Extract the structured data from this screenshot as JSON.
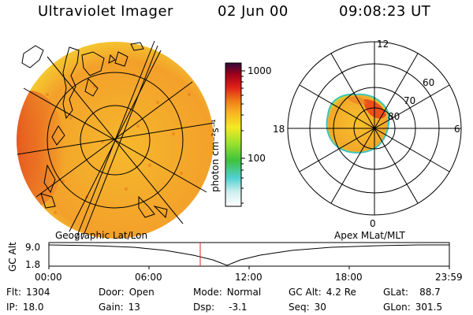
{
  "header": {
    "title": "Ultraviolet Imager",
    "date": "02 Jun 00",
    "time": "09:08:23 UT"
  },
  "colorbar": {
    "unit_label": "photon cm⁻²s⁻¹",
    "ticks": [
      "1000",
      "100"
    ],
    "scale": "log",
    "colors": [
      "#ffffff",
      "#cfeeee",
      "#4fd0d0",
      "#3ec23e",
      "#9be22a",
      "#f4ea22",
      "#f8b020",
      "#f07818",
      "#e02018",
      "#a0001a",
      "#300a3a"
    ]
  },
  "geo_panel": {
    "label": "Geographic Lat/Lon",
    "fill_color": "#f3a22a",
    "hot_color": "#e63a1a"
  },
  "polar_panel": {
    "label": "Apex MLat/MLT",
    "mlt_labels": {
      "top": "12",
      "right": "6",
      "bottom": "0",
      "left": "18"
    },
    "mlat_labels": [
      "60",
      "70",
      "80"
    ]
  },
  "altitude_plot": {
    "ylabel": "GC Alt",
    "y_ticks": [
      "9.0",
      "1.8"
    ],
    "x_ticks": [
      "00:00",
      "06:00",
      "12:00",
      "18:00",
      "23:59"
    ],
    "marker_color": "#e02020"
  },
  "info": {
    "flt_label": "Flt:",
    "flt_value": "1304",
    "ip_label": "IP:",
    "ip_value": "18.0",
    "door_label": "Door:",
    "door_value": "Open",
    "gain_label": "Gain:",
    "gain_value": "13",
    "mode_label": "Mode:",
    "mode_value": "Normal",
    "dsp_label": "Dsp:",
    "dsp_value": "-3.1",
    "gcalt_label": "GC Alt:",
    "gcalt_value": "4.2 Re",
    "seq_label": "Seq:",
    "seq_value": "30",
    "glat_label": "GLat:",
    "glat_value": "88.7",
    "glon_label": "GLon:",
    "glon_value": "301.5"
  }
}
